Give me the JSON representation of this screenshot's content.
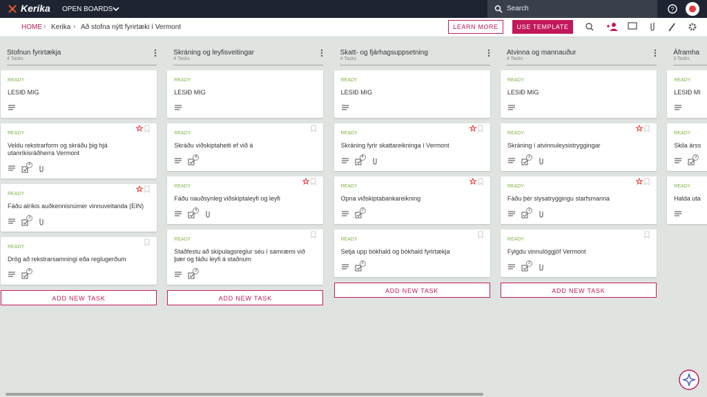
{
  "header": {
    "logo": "Kerika",
    "menu": "OPEN BOARDS",
    "search": "Search"
  },
  "breadcrumb": [
    "HOME",
    "Kerika",
    "Að stofna nýtt fyrirtæki í Vermont"
  ],
  "actions": {
    "learn_more": "LEARN MORE",
    "use_template": "USE TEMPLATE"
  },
  "columns": [
    {
      "title": "Stofnun fyrirtækja",
      "count": "4 Tasks",
      "add": "ADD NEW TASK",
      "cards": [
        {
          "status": "READY",
          "title": "LESIÐ MIG",
          "starred": false
        },
        {
          "status": "READY",
          "title": "Veldu rekstrarform og skráðu þig hjá utanríkisráðherra Vermont",
          "checks": 4,
          "attachment": true,
          "starred": true
        },
        {
          "status": "READY",
          "title": "Fáðu alríkis auðkennisnúmer vinnuveitanda (EIN)",
          "checks": 3,
          "attachment": true,
          "starred": true
        },
        {
          "status": "READY",
          "title": "Drög að rekstrarsamningi eða reglugerðum",
          "checks": 4,
          "starred": false
        }
      ]
    },
    {
      "title": "Skráning og leyfisveitingar",
      "count": "4 Tasks",
      "add": "ADD NEW TASK",
      "cards": [
        {
          "status": "READY",
          "title": "LESIÐ MIG",
          "starred": false
        },
        {
          "status": "READY",
          "title": "Skráðu viðskiptaheiti ef við á",
          "checks": 4,
          "starred": false
        },
        {
          "status": "READY",
          "title": "Fáðu nauðsynleg viðskiptaleyfi og leyfi",
          "checks": 4,
          "attachment": true,
          "starred": true
        },
        {
          "status": "READY",
          "title": "Staðfestu að skipulagsreglur séu í samræmi við þær og fáðu leyfi á staðnum",
          "checks": 3,
          "starred": false
        }
      ]
    },
    {
      "title": "Skatt- og fjárhagsuppsetning",
      "count": "4 Tasks",
      "add": "ADD NEW TASK",
      "cards": [
        {
          "status": "READY",
          "title": "LESIÐ MIG",
          "starred": false
        },
        {
          "status": "READY",
          "title": "Skráning fyrir skattareikninga í Vermont",
          "checks": 4,
          "attachment": true,
          "starred": true
        },
        {
          "status": "READY",
          "title": "Opna viðskiptabankareikning",
          "checks": 3,
          "starred": true
        },
        {
          "status": "READY",
          "title": "Setja upp bókhald og bókhald fyrirtækja",
          "checks": 3,
          "starred": false
        }
      ]
    },
    {
      "title": "Atvinna og mannauður",
      "count": "4 Tasks",
      "add": "ADD NEW TASK",
      "cards": [
        {
          "status": "READY",
          "title": "LESIÐ MIG",
          "starred": false
        },
        {
          "status": "READY",
          "title": "Skráning í atvinnuleysistryggingar",
          "checks": 3,
          "attachment": true,
          "starred": true
        },
        {
          "status": "READY",
          "title": "Fáðu þér slysatryggingu starfsmanna",
          "checks": 3,
          "attachment": true,
          "starred": true
        },
        {
          "status": "READY",
          "title": "Fylgdu vinnulöggjöf Vermont",
          "checks": 3,
          "attachment": true,
          "starred": false
        }
      ]
    },
    {
      "title": "Áframha",
      "count": "3 Tasks",
      "cards": [
        {
          "status": "READY",
          "title": "LESIÐ MI",
          "starred": false
        },
        {
          "status": "READY",
          "title": "Skila árss",
          "checks": 3,
          "starred": false
        },
        {
          "status": "READY",
          "title": "Halda uta",
          "starred": false
        }
      ]
    }
  ]
}
